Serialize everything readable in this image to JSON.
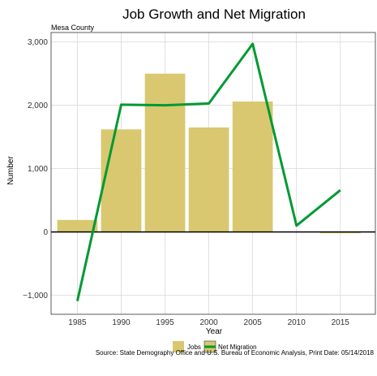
{
  "chart_data": {
    "type": "bar",
    "title": "Job Growth and Net Migration",
    "subtitle": "Mesa County",
    "xlabel": "Year",
    "ylabel": "Number",
    "x_ticks": [
      "1985",
      "1990",
      "1995",
      "2000",
      "2005",
      "2010",
      "2015"
    ],
    "xlim": [
      1982,
      2019
    ],
    "y_ticks": [
      -1000,
      0,
      1000,
      2000,
      3000
    ],
    "y_tick_labels": [
      "−1,000",
      "0",
      "1,000",
      "2,000",
      "3,000"
    ],
    "ylim": [
      -1300,
      3150
    ],
    "grid": true,
    "legend_position": "bottom",
    "series": [
      {
        "name": "Jobs",
        "type": "bar",
        "color": "#d9c870",
        "points": [
          {
            "x": 1985,
            "y": 190
          },
          {
            "x": 1990,
            "y": 1620
          },
          {
            "x": 1995,
            "y": 2500
          },
          {
            "x": 2000,
            "y": 1650
          },
          {
            "x": 2005,
            "y": 2060
          },
          {
            "x": 2015,
            "y": -20
          }
        ]
      },
      {
        "name": "Net Migration",
        "type": "line",
        "color": "#009933",
        "points": [
          {
            "x": 1985,
            "y": -1090
          },
          {
            "x": 1990,
            "y": 2010
          },
          {
            "x": 1995,
            "y": 2000
          },
          {
            "x": 2000,
            "y": 2030
          },
          {
            "x": 2005,
            "y": 2970
          },
          {
            "x": 2010,
            "y": 100
          },
          {
            "x": 2015,
            "y": 660
          }
        ]
      }
    ],
    "caption": "Source: State Demography Office and U.S. Bureau of Economic Analysis, Print Date: 05/14/2018"
  }
}
